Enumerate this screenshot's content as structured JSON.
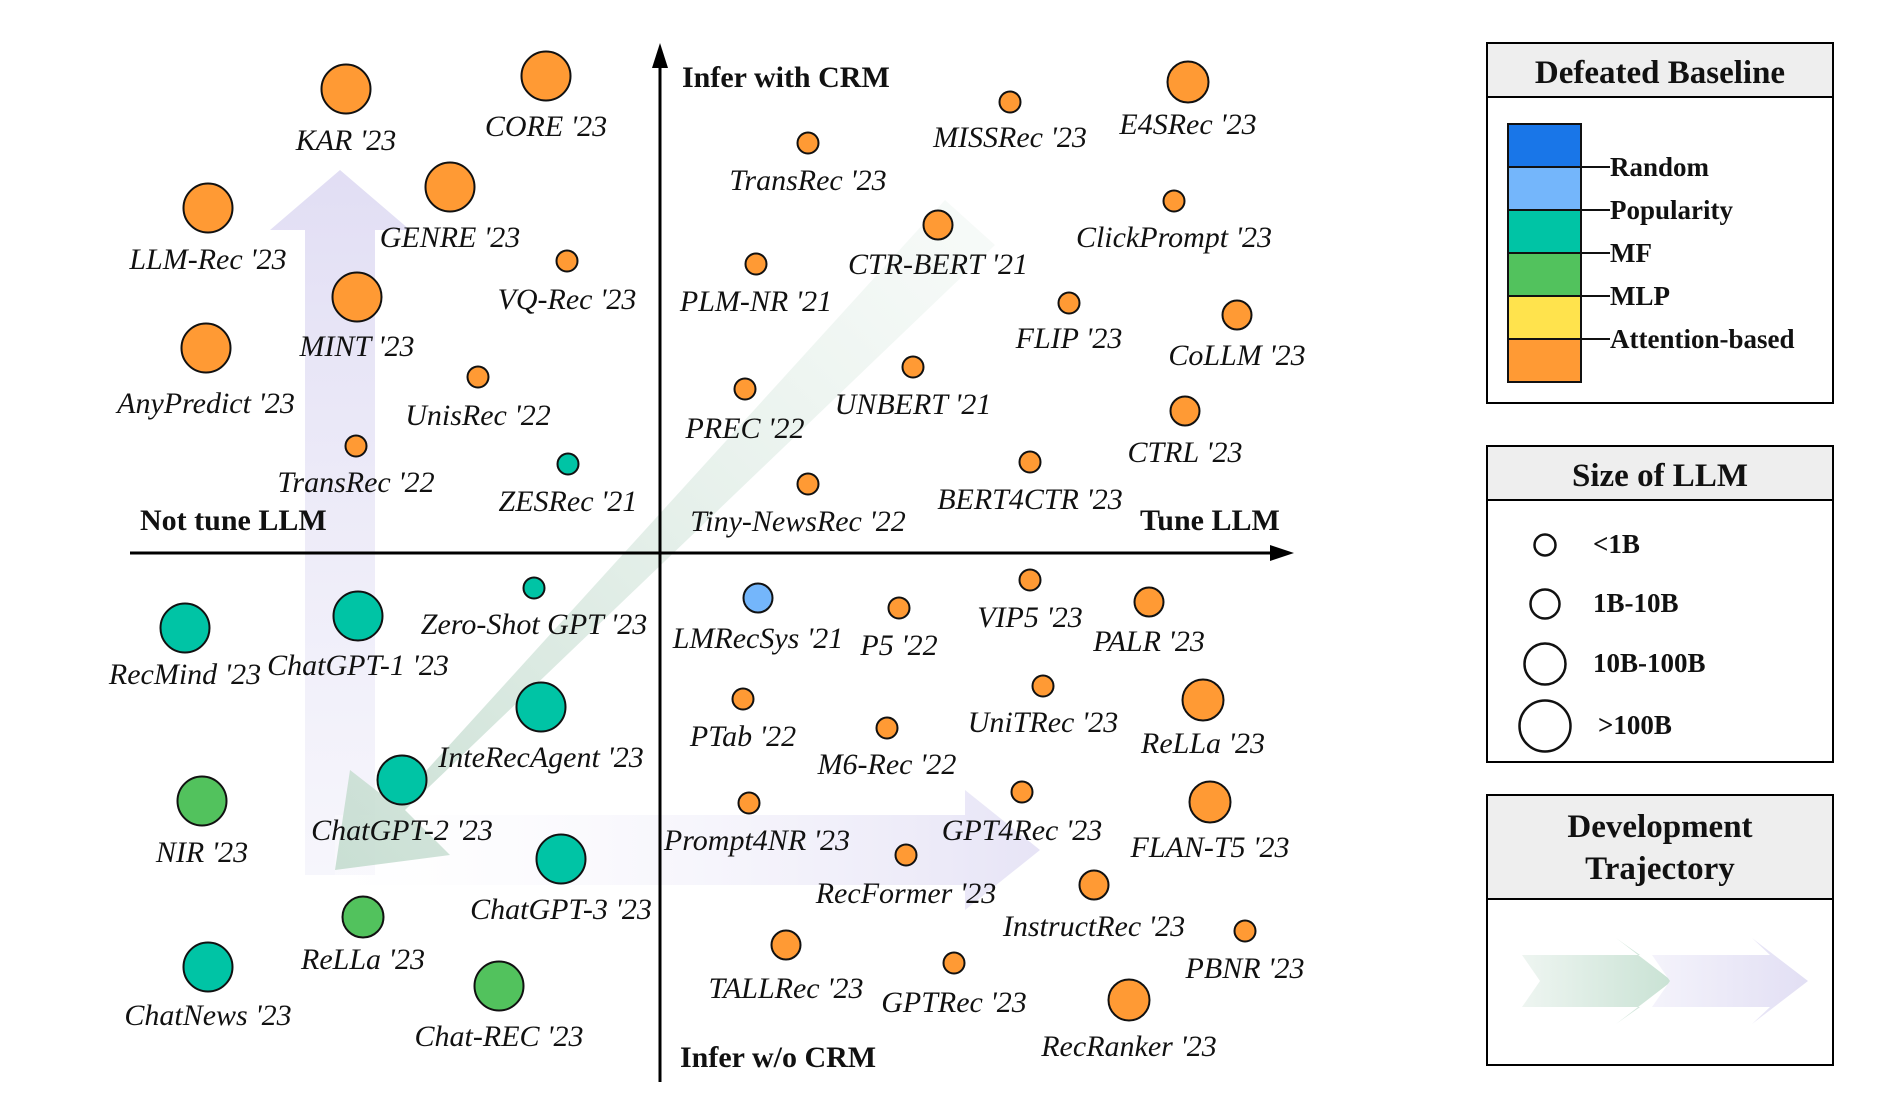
{
  "axes": {
    "top": "Infer with CRM",
    "bottom": "Infer w/o CRM",
    "left": "Not tune LLM",
    "right": "Tune LLM"
  },
  "baselines": {
    "Random": "#1976e8",
    "Popularity": "#74b6fb",
    "MF": "#00c4a5",
    "MLP": "#52c25d",
    "Attention-based": "#ff9a34"
  },
  "legend": {
    "baseline_title": "Defeated Baseline",
    "baseline_items": [
      {
        "label": "Random",
        "color": "#1976e8"
      },
      {
        "label": "Popularity",
        "color": "#74b6fb"
      },
      {
        "label": "MF",
        "color": "#00c4a5"
      },
      {
        "label": "MLP",
        "color": "#52c25d"
      },
      {
        "label": "Attention-based",
        "color": "#ffe34d"
      },
      {
        "label": "",
        "color": "#ff9a34"
      }
    ],
    "size_title": "Size of LLM",
    "size_items": [
      "<1B",
      "1B-10B",
      "10B-100B",
      ">100B"
    ],
    "trajectory_title_1": "Development",
    "trajectory_title_2": "Trajectory"
  },
  "models": [
    {
      "name": "KAR '23",
      "size": ">100B",
      "baseline": "Attention-based"
    },
    {
      "name": "CORE '23",
      "size": ">100B",
      "baseline": "Attention-based"
    },
    {
      "name": "LLM-Rec '23",
      "size": ">100B",
      "baseline": "Attention-based"
    },
    {
      "name": "GENRE '23",
      "size": ">100B",
      "baseline": "Attention-based"
    },
    {
      "name": "VQ-Rec '23",
      "size": "<1B",
      "baseline": "Attention-based"
    },
    {
      "name": "MINT '23",
      "size": ">100B",
      "baseline": "Attention-based"
    },
    {
      "name": "AnyPredict '23",
      "size": ">100B",
      "baseline": "Attention-based"
    },
    {
      "name": "UnisRec '22",
      "size": "<1B",
      "baseline": "Attention-based"
    },
    {
      "name": "TransRec '22",
      "size": "<1B",
      "baseline": "Attention-based"
    },
    {
      "name": "ZESRec '21",
      "size": "<1B",
      "baseline": "MF"
    },
    {
      "name": "TransRec '23",
      "size": "<1B",
      "baseline": "Attention-based"
    },
    {
      "name": "MISSRec '23",
      "size": "<1B",
      "baseline": "Attention-based"
    },
    {
      "name": "E4SRec '23",
      "size": "10B-100B",
      "baseline": "Attention-based"
    },
    {
      "name": "CTR-BERT '21",
      "size": "1B-10B",
      "baseline": "Attention-based"
    },
    {
      "name": "ClickPrompt '23",
      "size": "<1B",
      "baseline": "Attention-based"
    },
    {
      "name": "PLM-NR '21",
      "size": "<1B",
      "baseline": "Attention-based"
    },
    {
      "name": "FLIP '23",
      "size": "<1B",
      "baseline": "Attention-based"
    },
    {
      "name": "CoLLM '23",
      "size": "1B-10B",
      "baseline": "Attention-based"
    },
    {
      "name": "UNBERT '21",
      "size": "<1B",
      "baseline": "Attention-based"
    },
    {
      "name": "PREC '22",
      "size": "<1B",
      "baseline": "Attention-based"
    },
    {
      "name": "CTRL '23",
      "size": "1B-10B",
      "baseline": "Attention-based"
    },
    {
      "name": "BERT4CTR '23",
      "size": "<1B",
      "baseline": "Attention-based"
    },
    {
      "name": "Tiny-NewsRec '22",
      "size": "<1B",
      "baseline": "Attention-based"
    },
    {
      "name": "RecMind '23",
      "size": ">100B",
      "baseline": "MF"
    },
    {
      "name": "ChatGPT-1 '23",
      "size": ">100B",
      "baseline": "MF"
    },
    {
      "name": "Zero-Shot GPT '23",
      "size": "<1B",
      "baseline": "MF"
    },
    {
      "name": "InteRecAgent '23",
      "size": ">100B",
      "baseline": "MF"
    },
    {
      "name": "NIR '23",
      "size": ">100B",
      "baseline": "MLP"
    },
    {
      "name": "ChatGPT-2 '23",
      "size": ">100B",
      "baseline": "MF"
    },
    {
      "name": "ChatGPT-3 '23",
      "size": ">100B",
      "baseline": "MF"
    },
    {
      "name": "ReLLa '23",
      "size": "10B-100B",
      "baseline": "MLP"
    },
    {
      "name": "ChatNews '23",
      "size": ">100B",
      "baseline": "MF"
    },
    {
      "name": "Chat-REC '23",
      "size": ">100B",
      "baseline": "MLP"
    },
    {
      "name": "LMRecSys '21",
      "size": "1B-10B",
      "baseline": "Popularity"
    },
    {
      "name": "P5 '22",
      "size": "<1B",
      "baseline": "Attention-based"
    },
    {
      "name": "VIP5 '23",
      "size": "<1B",
      "baseline": "Attention-based"
    },
    {
      "name": "PALR '23",
      "size": "1B-10B",
      "baseline": "Attention-based"
    },
    {
      "name": "PTab '22",
      "size": "<1B",
      "baseline": "Attention-based"
    },
    {
      "name": "M6-Rec '22",
      "size": "<1B",
      "baseline": "Attention-based"
    },
    {
      "name": "UniTRec '23",
      "size": "<1B",
      "baseline": "Attention-based"
    },
    {
      "name": "ReLLa '23",
      "size": "10B-100B",
      "baseline": "Attention-based"
    },
    {
      "name": "Prompt4NR '23",
      "size": "<1B",
      "baseline": "Attention-based"
    },
    {
      "name": "GPT4Rec '23",
      "size": "<1B",
      "baseline": "Attention-based"
    },
    {
      "name": "FLAN-T5 '23",
      "size": "10B-100B",
      "baseline": "Attention-based"
    },
    {
      "name": "RecFormer '23",
      "size": "<1B",
      "baseline": "Attention-based"
    },
    {
      "name": "InstructRec '23",
      "size": "1B-10B",
      "baseline": "Attention-based"
    },
    {
      "name": "TALLRec '23",
      "size": "1B-10B",
      "baseline": "Attention-based"
    },
    {
      "name": "GPTRec '23",
      "size": "<1B",
      "baseline": "Attention-based"
    },
    {
      "name": "PBNR '23",
      "size": "<1B",
      "baseline": "Attention-based"
    },
    {
      "name": "RecRanker '23",
      "size": "10B-100B",
      "baseline": "Attention-based"
    }
  ]
}
